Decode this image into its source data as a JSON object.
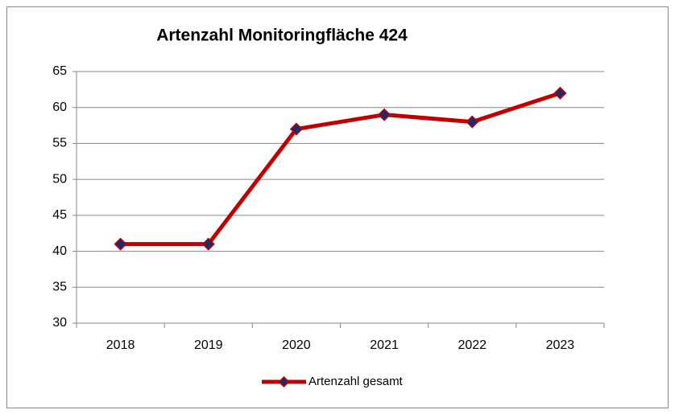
{
  "chart_data": {
    "type": "line",
    "title": "Artenzahl Monitoringfläche 424",
    "categories": [
      "2018",
      "2019",
      "2020",
      "2021",
      "2022",
      "2023"
    ],
    "series": [
      {
        "name": "Artenzahl gesamt",
        "color": "#c00000",
        "marker_color": "#1f2a6b",
        "values": [
          41,
          41,
          57,
          59,
          58,
          62
        ]
      }
    ],
    "ylim": [
      30,
      65
    ],
    "yticks": [
      30,
      35,
      40,
      45,
      50,
      55,
      60,
      65
    ],
    "grid": true,
    "legend": "bottom"
  }
}
